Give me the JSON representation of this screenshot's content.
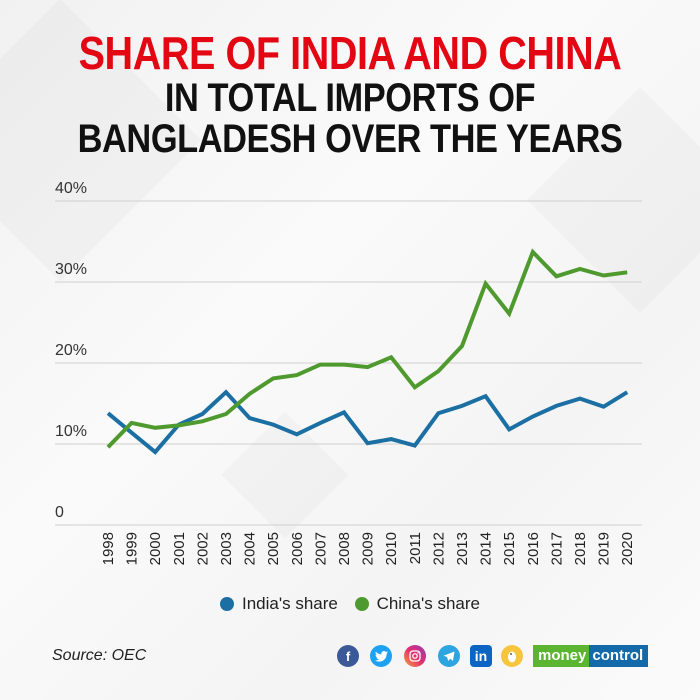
{
  "title": {
    "line1": "SHARE OF INDIA AND CHINA",
    "line2": "IN TOTAL IMPORTS OF",
    "line3": "BANGLADESH OVER THE YEARS"
  },
  "colors": {
    "title_red": "#e30613",
    "india": "#1b6fa3",
    "china": "#4f9a2f",
    "grid": "#cfcfcf"
  },
  "legend": {
    "india": "India's share",
    "china": "China's share"
  },
  "footer": {
    "source": "Source: OEC",
    "social_icons": [
      "facebook-icon",
      "twitter-icon",
      "instagram-icon",
      "telegram-icon",
      "linkedin-icon",
      "koo-icon"
    ],
    "brand_part1": "money",
    "brand_part2": "control"
  },
  "chart_data": {
    "type": "line",
    "title": "Share of India and China in total imports of Bangladesh over the years",
    "xlabel": "",
    "ylabel": "",
    "ylim": [
      0,
      40
    ],
    "yticks": [
      "0",
      "10%",
      "20%",
      "30%",
      "40%"
    ],
    "grid": true,
    "legend_position": "bottom",
    "x": [
      "1998",
      "1999",
      "2000",
      "2001",
      "2002",
      "2003",
      "2004",
      "2005",
      "2006",
      "2007",
      "2008",
      "2009",
      "2010",
      "2011",
      "2012",
      "2013",
      "2014",
      "2015",
      "2016",
      "2017",
      "2018",
      "2019",
      "2020"
    ],
    "series": [
      {
        "name": "India's share",
        "color": "#1b6fa3",
        "values": [
          13.8,
          11.4,
          9.0,
          12.4,
          13.7,
          16.4,
          13.2,
          12.4,
          11.2,
          12.6,
          13.9,
          10.1,
          10.6,
          9.8,
          13.8,
          14.7,
          15.9,
          11.8,
          13.4,
          14.7,
          15.6,
          14.6,
          16.4
        ]
      },
      {
        "name": "China's share",
        "color": "#4f9a2f",
        "values": [
          9.6,
          12.6,
          12.0,
          12.3,
          12.8,
          13.7,
          16.2,
          18.1,
          18.5,
          19.8,
          19.8,
          19.5,
          20.7,
          17.0,
          19.0,
          22.1,
          29.8,
          26.1,
          33.7,
          30.7,
          31.6,
          30.8,
          31.2
        ]
      }
    ]
  }
}
